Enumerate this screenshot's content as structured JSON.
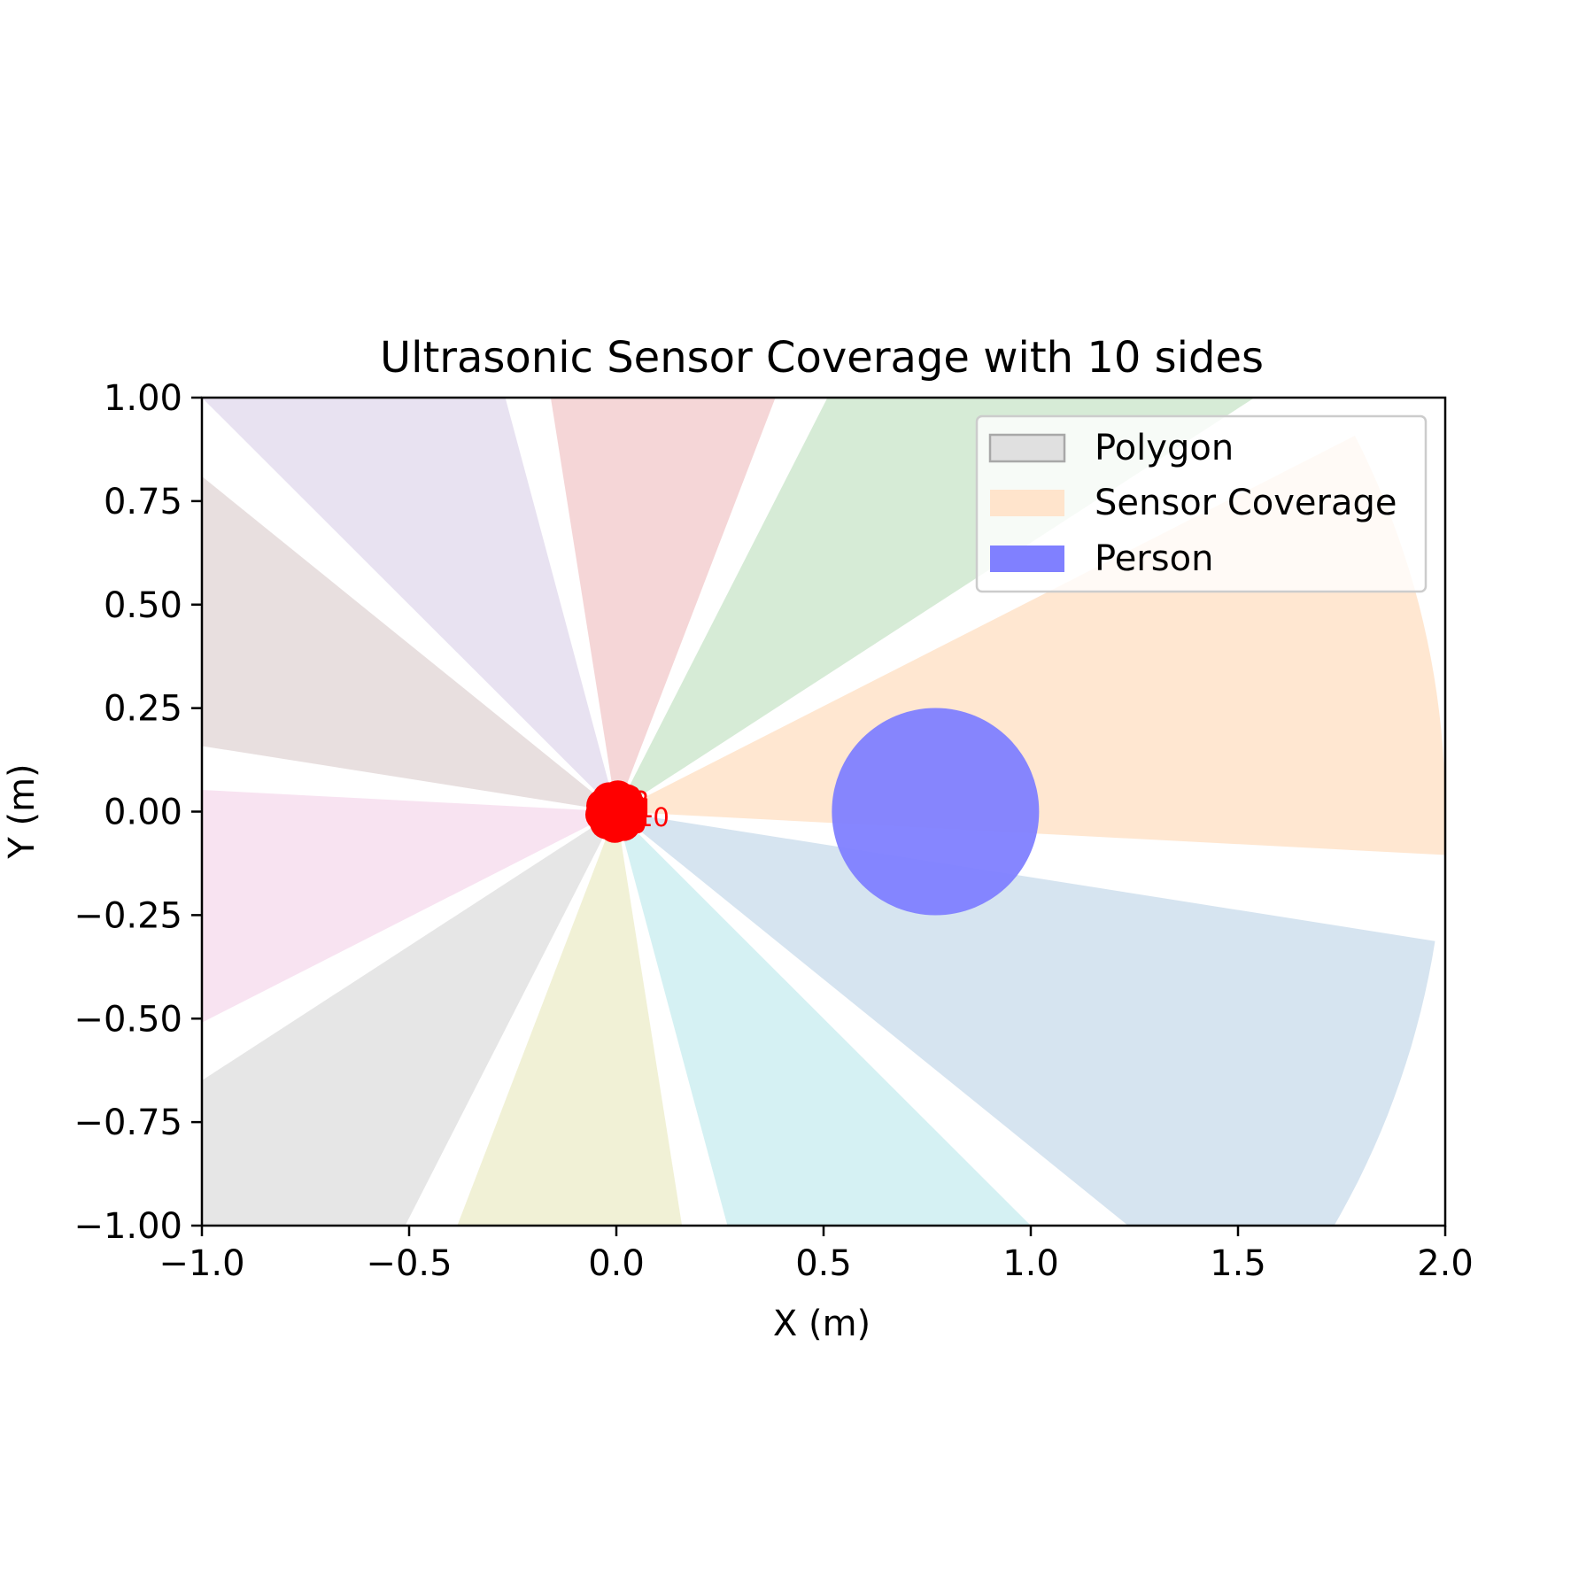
{
  "chart_data": {
    "type": "scatter",
    "title": "Ultrasonic Sensor Coverage with 10 sides",
    "xlabel": "X (m)",
    "ylabel": "Y (m)",
    "xlim": [
      -1.0,
      2.0
    ],
    "ylim": [
      -1.0,
      1.0
    ],
    "xticks": [
      "−1.0",
      "−0.5",
      "0.0",
      "0.5",
      "1.0",
      "1.5",
      "2.0"
    ],
    "xtick_values": [
      -1.0,
      -0.5,
      0.0,
      0.5,
      1.0,
      1.5,
      2.0
    ],
    "yticks": [
      "1.00",
      "0.75",
      "0.50",
      "0.25",
      "0.00",
      "−0.25",
      "−0.50",
      "−0.75",
      "−1.00"
    ],
    "ytick_values": [
      1.0,
      0.75,
      0.5,
      0.25,
      0.0,
      -0.25,
      -0.5,
      -0.75,
      -1.0
    ],
    "grid": false,
    "legend": {
      "placement": "top-right",
      "entries": [
        {
          "label": "Polygon",
          "color": "#e0e0e0",
          "edge": "#a8a8a8"
        },
        {
          "label": "Sensor Coverage",
          "color": "#ffe4cc"
        },
        {
          "label": "Person",
          "color": "#8080ff"
        }
      ]
    },
    "polygon": {
      "sides": 10,
      "radius": 0.07,
      "center": [
        0.0,
        0.0
      ],
      "color": "#ff0000"
    },
    "sensors": [
      {
        "label": "1",
        "angle_deg": 12,
        "color": "#ffe4cc"
      },
      {
        "label": "2",
        "angle_deg": 48,
        "color": "#d2e9d2"
      },
      {
        "label": "3",
        "angle_deg": 84,
        "color": "#f4d2d3"
      },
      {
        "label": "4",
        "angle_deg": 120,
        "color": "#e6dff0"
      },
      {
        "label": "5",
        "angle_deg": 156,
        "color": "#e6dcdb"
      },
      {
        "label": "6",
        "angle_deg": 192,
        "color": "#f7e0f0"
      },
      {
        "label": "7",
        "angle_deg": 228,
        "color": "#e3e3e3"
      },
      {
        "label": "8",
        "angle_deg": 264,
        "color": "#efefd1"
      },
      {
        "label": "9",
        "angle_deg": 300,
        "color": "#d0eff2"
      },
      {
        "label": "10",
        "angle_deg": 336,
        "color": "#d1e1ee"
      }
    ],
    "sensor_range_m": 2.0,
    "sensor_fov_deg": 30,
    "person": {
      "center": [
        0.77,
        0.0
      ],
      "radius": 0.25,
      "color": "#8080ff"
    }
  }
}
